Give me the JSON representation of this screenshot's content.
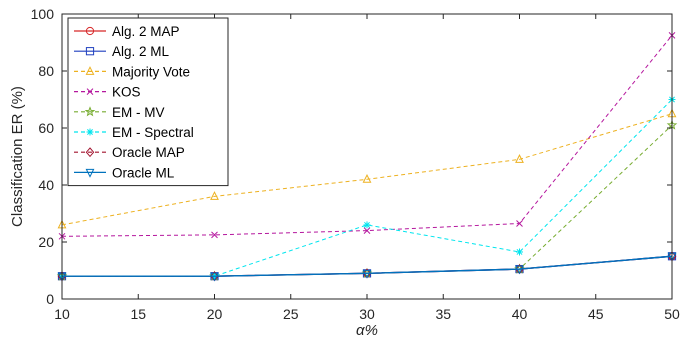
{
  "chart_data": {
    "type": "line",
    "xlabel": "α%",
    "ylabel": "Classification ER (%)",
    "x": [
      10,
      20,
      30,
      40,
      50
    ],
    "xlim": [
      10,
      50
    ],
    "ylim": [
      0,
      100
    ],
    "xticks": [
      10,
      15,
      20,
      25,
      30,
      35,
      40,
      45,
      50
    ],
    "yticks": [
      0,
      20,
      40,
      60,
      80,
      100
    ],
    "grid": false,
    "legend_position": "top-left",
    "series": [
      {
        "name": "Alg. 2 MAP",
        "values": [
          8,
          8,
          9,
          10.5,
          15
        ],
        "color": "#d62728",
        "dash": "solid",
        "marker": "circle"
      },
      {
        "name": "Alg. 2 ML",
        "values": [
          8,
          8,
          9,
          10.5,
          15
        ],
        "color": "#1f3fbf",
        "dash": "solid",
        "marker": "square"
      },
      {
        "name": "Majority Vote",
        "values": [
          26,
          36,
          42,
          49,
          65
        ],
        "color": "#edb120",
        "dash": "dashed",
        "marker": "triangle-up"
      },
      {
        "name": "KOS",
        "values": [
          22,
          22.5,
          24,
          26.5,
          92.5
        ],
        "color": "#b5179e",
        "dash": "dashed",
        "marker": "x"
      },
      {
        "name": "EM - MV",
        "values": [
          8,
          8,
          9,
          10.5,
          61
        ],
        "color": "#77ac30",
        "dash": "dashed",
        "marker": "star"
      },
      {
        "name": "EM - Spectral",
        "values": [
          8,
          8,
          26,
          16.5,
          70
        ],
        "color": "#00e5ee",
        "dash": "dashed",
        "marker": "asterisk"
      },
      {
        "name": "Oracle MAP",
        "values": [
          8,
          8,
          9,
          10.5,
          15
        ],
        "color": "#a2142f",
        "dash": "dashed",
        "marker": "diamond"
      },
      {
        "name": "Oracle ML",
        "values": [
          8,
          8,
          9,
          10.5,
          15
        ],
        "color": "#0072bd",
        "dash": "solid",
        "marker": "triangle-down"
      }
    ]
  }
}
